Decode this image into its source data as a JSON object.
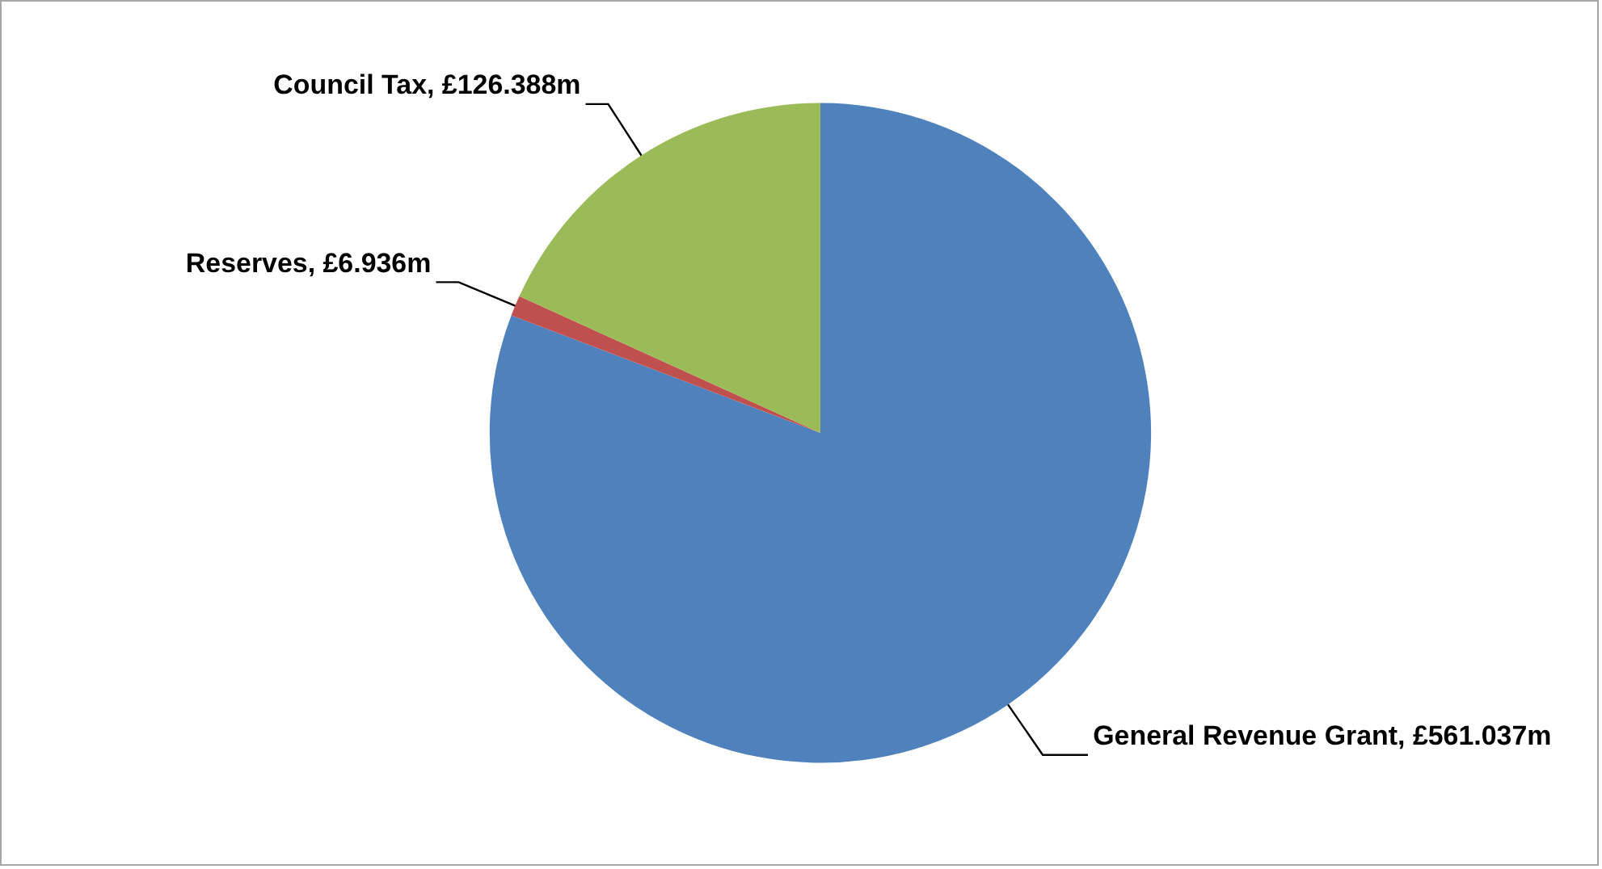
{
  "chart_data": {
    "type": "pie",
    "categories": [
      "General Revenue Grant",
      "Reserves",
      "Council Tax"
    ],
    "values": [
      561.037,
      6.936,
      126.388
    ],
    "value_labels": [
      "£561.037m",
      "£6.936m",
      "£126.388m"
    ],
    "colors": [
      "#4f81bd",
      "#c0504d",
      "#9bbb59"
    ],
    "legend": false
  }
}
